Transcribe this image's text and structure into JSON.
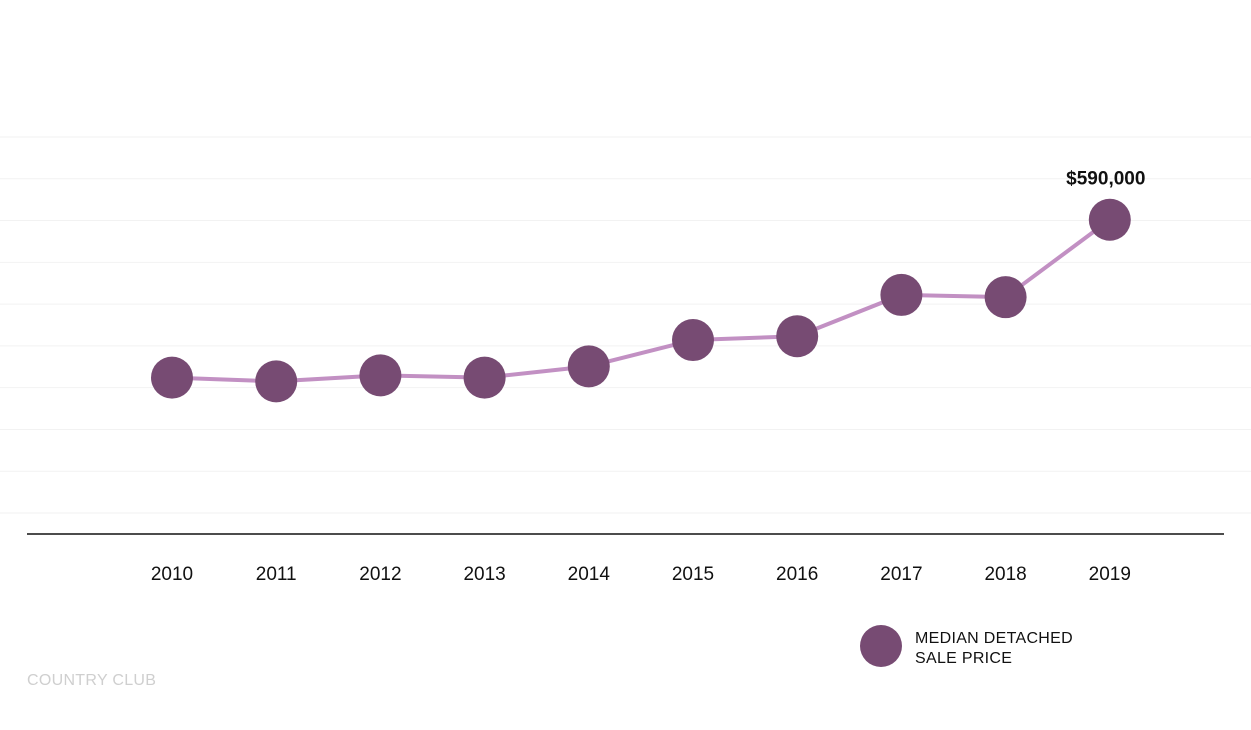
{
  "chart_data": {
    "type": "line",
    "x": [
      "2010",
      "2011",
      "2012",
      "2013",
      "2014",
      "2015",
      "2016",
      "2017",
      "2018",
      "2019"
    ],
    "series": [
      {
        "name": "MEDIAN DETACHED SALE PRICE",
        "values": [
          380000,
          375000,
          383000,
          380000,
          395000,
          430000,
          435000,
          490000,
          487000,
          590000
        ]
      }
    ],
    "annotations": [
      {
        "x": "2019",
        "text": "$590,000"
      }
    ],
    "legend": {
      "position": "bottom-right",
      "lines": [
        "MEDIAN DETACHED",
        "SALE PRICE"
      ]
    },
    "ylim": [
      200000,
      700000
    ],
    "grid": true,
    "title": "",
    "xlabel": "",
    "ylabel": "",
    "colors": {
      "marker": "#774b73",
      "line": "#c290c3",
      "grid": "#f2f2f2",
      "axis": "#111111",
      "footer": "#cfcfcf"
    }
  },
  "footer": {
    "label": "COUNTRY CLUB"
  }
}
